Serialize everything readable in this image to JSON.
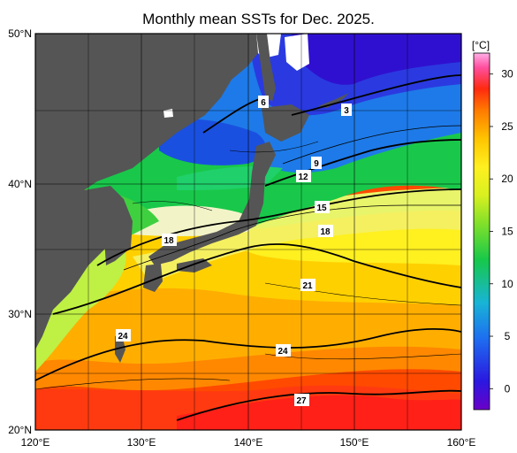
{
  "title": "Monthly mean SSTs for Dec. 2025.",
  "map": {
    "lon_range": [
      120,
      160
    ],
    "lat_range": [
      20,
      50
    ],
    "lon_ticks": [
      "120°E",
      "130°E",
      "140°E",
      "150°E",
      "160°E"
    ],
    "lat_ticks": [
      "50°N",
      "40°N",
      "30°N",
      "20°N"
    ]
  },
  "contour_labels": [
    "6",
    "3",
    "9",
    "12",
    "15",
    "18",
    "18",
    "21",
    "24",
    "24",
    "27"
  ],
  "colorbar": {
    "unit": "[°C]",
    "ticks": [
      "30",
      "25",
      "20",
      "15",
      "10",
      "5",
      "0"
    ],
    "min": -2,
    "max": 32
  },
  "colors": {
    "land": "#555555",
    "cold": "#1a1ad6",
    "cool": "#1fbf3a",
    "mild": "#f2f5a0",
    "warm": "#ffd500",
    "hot": "#ff5a00"
  }
}
